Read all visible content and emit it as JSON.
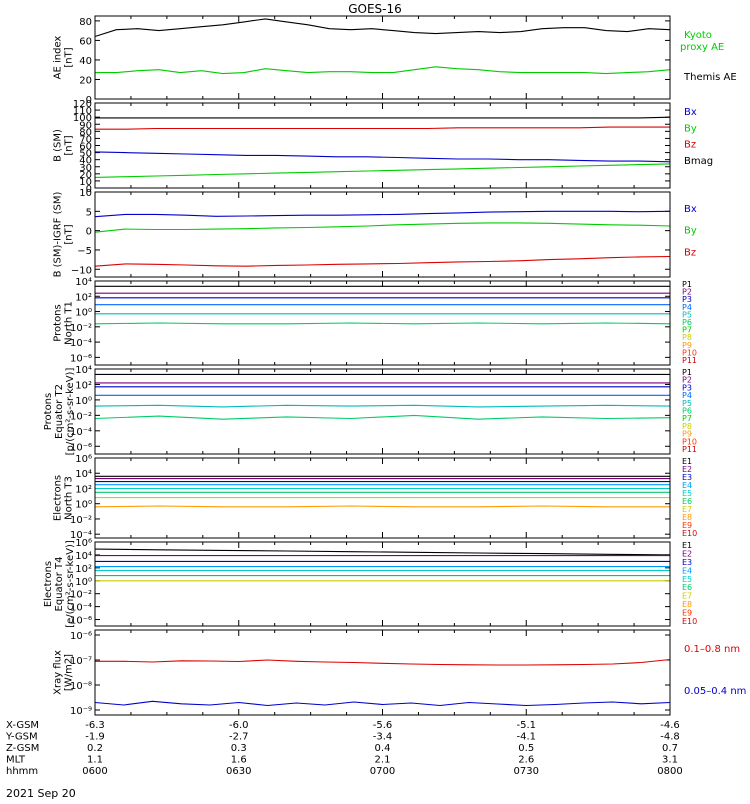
{
  "title": "GOES-16",
  "date_label": "2021 Sep 20",
  "colors": {
    "black": "#000000",
    "red": "#dd0000",
    "green": "#00cc00",
    "blue": "#0000cc",
    "p_palette": [
      "#000000",
      "#7a007a",
      "#0000cc",
      "#0066ff",
      "#00bbbb",
      "#00cc66",
      "#00cc00",
      "#cccc00",
      "#ff9900",
      "#ff3300",
      "#cc0000"
    ],
    "e_palette": [
      "#000000",
      "#7a007a",
      "#0000cc",
      "#0099ff",
      "#00cccc",
      "#00cc66",
      "#cccc00",
      "#ff9900",
      "#ff3300",
      "#dd0000"
    ]
  },
  "xaxis": {
    "rows": [
      {
        "label": "X-GSM",
        "values": [
          "-6.3",
          "-6.0",
          "-5.6",
          "-5.1",
          "-4.6"
        ]
      },
      {
        "label": "Y-GSM",
        "values": [
          "-1.9",
          "-2.7",
          "-3.4",
          "-4.1",
          "-4.8"
        ]
      },
      {
        "label": "Z-GSM",
        "values": [
          "0.2",
          "0.3",
          "0.4",
          "0.5",
          "0.7"
        ]
      },
      {
        "label": "MLT",
        "values": [
          "1.1",
          "1.6",
          "2.1",
          "2.6",
          "3.1"
        ]
      },
      {
        "label": "hhmm",
        "values": [
          "0600",
          "0630",
          "0700",
          "0730",
          "0800"
        ]
      }
    ]
  },
  "chart_data": [
    {
      "type": "line",
      "id": "ae",
      "ylabel": [
        "AE index",
        "[nT]"
      ],
      "ylim": [
        0,
        85
      ],
      "yticks": [
        {
          "v": 0,
          "t": "0"
        },
        {
          "v": 20,
          "t": "20"
        },
        {
          "v": 40,
          "t": "40"
        },
        {
          "v": 60,
          "t": "60"
        },
        {
          "v": 80,
          "t": "80"
        }
      ],
      "series": [
        {
          "name": "Kyoto proxy AE",
          "color": "green",
          "values": [
            27,
            27,
            29,
            30,
            27,
            29,
            26,
            27,
            31,
            29,
            27,
            28,
            28,
            27,
            27,
            30,
            33,
            31,
            30,
            28,
            27,
            27,
            27,
            27,
            26,
            27,
            28,
            30
          ]
        },
        {
          "name": "Themis AE",
          "color": "black",
          "values": [
            64,
            71,
            72,
            70,
            72,
            74,
            76,
            79,
            82,
            79,
            76,
            72,
            71,
            72,
            70,
            68,
            67,
            68,
            69,
            68,
            69,
            72,
            73,
            73,
            70,
            69,
            72,
            71
          ]
        }
      ]
    },
    {
      "type": "line",
      "id": "bsm",
      "ylabel": [
        "B (SM)",
        "[nT]"
      ],
      "ylim": [
        0,
        120
      ],
      "yticks": [
        {
          "v": 0,
          "t": "0"
        },
        {
          "v": 10,
          "t": "10"
        },
        {
          "v": 20,
          "t": "20"
        },
        {
          "v": 30,
          "t": "30"
        },
        {
          "v": 40,
          "t": "40"
        },
        {
          "v": 50,
          "t": "50"
        },
        {
          "v": 60,
          "t": "60"
        },
        {
          "v": 70,
          "t": "70"
        },
        {
          "v": 80,
          "t": "80"
        },
        {
          "v": 90,
          "t": "90"
        },
        {
          "v": 100,
          "t": "100"
        },
        {
          "v": 110,
          "t": "110"
        },
        {
          "v": 120,
          "t": "120"
        }
      ],
      "series": [
        {
          "name": "Bx",
          "color": "blue",
          "values": [
            51,
            50,
            49,
            48,
            47,
            46,
            46,
            45,
            44,
            44,
            43,
            42,
            41,
            41,
            40,
            40,
            39,
            38,
            38,
            37
          ]
        },
        {
          "name": "By",
          "color": "green",
          "values": [
            15,
            16,
            17,
            18,
            19,
            20,
            21,
            22,
            23,
            24,
            25,
            26,
            27,
            28,
            29,
            30,
            31,
            32,
            33,
            34
          ]
        },
        {
          "name": "Bz",
          "color": "red",
          "values": [
            83,
            83,
            84,
            84,
            84,
            84,
            84,
            84,
            84,
            84,
            84,
            84,
            85,
            85,
            85,
            85,
            85,
            86,
            86,
            86
          ]
        },
        {
          "name": "Bmag",
          "color": "black",
          "values": [
            99,
            99,
            99,
            99,
            99,
            99,
            99,
            99,
            99,
            99,
            99,
            99,
            99,
            99,
            99,
            99,
            99,
            99,
            99,
            100
          ]
        }
      ]
    },
    {
      "type": "line",
      "id": "bigrf",
      "ylabel": [
        "B (SM)-IGRF (SM)",
        "[nT]"
      ],
      "ylim": [
        -12,
        10
      ],
      "yticks": [
        {
          "v": -10,
          "t": "−10"
        },
        {
          "v": -5,
          "t": "−5"
        },
        {
          "v": 0,
          "t": "0"
        },
        {
          "v": 5,
          "t": "5"
        },
        {
          "v": 10,
          "t": "10"
        }
      ],
      "series": [
        {
          "name": "Bx",
          "color": "blue",
          "values": [
            3.6,
            4.2,
            4.2,
            4.0,
            3.7,
            3.8,
            3.9,
            4.0,
            4.0,
            4.1,
            4.2,
            4.4,
            4.6,
            4.8,
            4.9,
            5.0,
            5.0,
            5.0,
            4.9,
            5.0
          ]
        },
        {
          "name": "By",
          "color": "green",
          "values": [
            -0.4,
            0.4,
            0.3,
            0.3,
            0.4,
            0.5,
            0.7,
            0.8,
            1.0,
            1.2,
            1.5,
            1.7,
            1.9,
            2.0,
            2.0,
            1.9,
            1.7,
            1.5,
            1.4,
            1.2
          ]
        },
        {
          "name": "Bz",
          "color": "red",
          "values": [
            -9.2,
            -8.6,
            -8.7,
            -8.9,
            -9.1,
            -9.2,
            -9.0,
            -8.9,
            -8.7,
            -8.6,
            -8.5,
            -8.3,
            -8.1,
            -8.0,
            -7.8,
            -7.5,
            -7.3,
            -7.0,
            -6.8,
            -6.7
          ]
        }
      ]
    },
    {
      "type": "line",
      "id": "protons-t1",
      "scale": "log",
      "ylabel": [
        "Protons",
        "North T1"
      ],
      "ylim": [
        -7,
        4
      ],
      "yticks": [
        {
          "v": 4,
          "t": "10⁴"
        },
        {
          "v": 2,
          "t": "10²"
        },
        {
          "v": 0,
          "t": "10⁰"
        },
        {
          "v": -2,
          "t": "10⁻²"
        },
        {
          "v": -4,
          "t": "10⁻⁴"
        },
        {
          "v": -6,
          "t": "10⁻⁶"
        }
      ],
      "legend": [
        "P1",
        "P2",
        "P3",
        "P4",
        "P5",
        "P6",
        "P7",
        "P8",
        "P9",
        "P10",
        "P11"
      ],
      "series": [
        {
          "name": "P1",
          "color_index": 0,
          "values": [
            3.3,
            3.3,
            3.3,
            3.3,
            3.3,
            3.3,
            3.3,
            3.3,
            3.3,
            3.3
          ]
        },
        {
          "name": "P2",
          "color_index": 1,
          "values": [
            2.4,
            2.4,
            2.4,
            2.4,
            2.4,
            2.4,
            2.4,
            2.4,
            2.4,
            2.4
          ]
        },
        {
          "name": "P3",
          "color_index": 2,
          "values": [
            1.8,
            1.8,
            1.8,
            1.8,
            1.8,
            1.8,
            1.8,
            1.8,
            1.8,
            1.8
          ]
        },
        {
          "name": "P4",
          "color_index": 3,
          "values": [
            0.9,
            0.9,
            0.9,
            0.9,
            0.9,
            0.9,
            0.9,
            0.9,
            0.9,
            0.9
          ]
        },
        {
          "name": "P5",
          "color_index": 4,
          "values": [
            -0.3,
            -0.3,
            -0.3,
            -0.3,
            -0.3,
            -0.3,
            -0.3,
            -0.3,
            -0.3,
            -0.3
          ]
        },
        {
          "name": "P6",
          "color_index": 5,
          "values": [
            -1.6,
            -1.5,
            -1.6,
            -1.6,
            -1.5,
            -1.6,
            -1.5,
            -1.6,
            -1.5,
            -1.6
          ]
        }
      ]
    },
    {
      "type": "line",
      "id": "protons-t2",
      "scale": "log",
      "ylabel": [
        "Protons",
        "Equator T2",
        "[p/(cm²-s-sr-keV)]"
      ],
      "ylim": [
        -7,
        4
      ],
      "yticks": [
        {
          "v": 4,
          "t": "10⁴"
        },
        {
          "v": 2,
          "t": "10²"
        },
        {
          "v": 0,
          "t": "10⁰"
        },
        {
          "v": -2,
          "t": "10⁻²"
        },
        {
          "v": -4,
          "t": "10⁻⁴"
        },
        {
          "v": -6,
          "t": "10⁻⁶"
        }
      ],
      "legend": [
        "P1",
        "P2",
        "P3",
        "P4",
        "P5",
        "P6",
        "P7",
        "P8",
        "P9",
        "P10",
        "P11"
      ],
      "series": [
        {
          "name": "P1",
          "color_index": 0,
          "values": [
            3.3,
            3.3,
            3.3,
            3.3,
            3.3,
            3.3,
            3.3,
            3.3,
            3.3,
            3.3
          ]
        },
        {
          "name": "P2",
          "color_index": 1,
          "values": [
            2.2,
            2.2,
            2.2,
            2.2,
            2.2,
            2.2,
            2.2,
            2.2,
            2.2,
            2.2
          ]
        },
        {
          "name": "P3",
          "color_index": 2,
          "values": [
            1.7,
            1.7,
            1.7,
            1.7,
            1.7,
            1.7,
            1.7,
            1.7,
            1.7,
            1.7
          ]
        },
        {
          "name": "P4",
          "color_index": 3,
          "values": [
            0.6,
            0.6,
            0.6,
            0.6,
            0.6,
            0.6,
            0.6,
            0.6,
            0.6,
            0.6
          ]
        },
        {
          "name": "P5",
          "color_index": 4,
          "values": [
            -0.8,
            -0.7,
            -0.9,
            -0.7,
            -0.8,
            -0.7,
            -0.9,
            -0.8,
            -0.7,
            -0.8
          ]
        },
        {
          "name": "P6",
          "color_index": 5,
          "values": [
            -2.4,
            -2.1,
            -2.5,
            -2.2,
            -2.4,
            -2.0,
            -2.5,
            -2.2,
            -2.4,
            -2.3
          ]
        }
      ]
    },
    {
      "type": "line",
      "id": "electrons-t3",
      "scale": "log",
      "ylabel": [
        "Electrons",
        "North T3"
      ],
      "ylim": [
        -4.5,
        6
      ],
      "yticks": [
        {
          "v": 6,
          "t": "10⁶"
        },
        {
          "v": 4,
          "t": "10⁴"
        },
        {
          "v": 2,
          "t": "10²"
        },
        {
          "v": 0,
          "t": "10⁰"
        },
        {
          "v": -2,
          "t": "10⁻²"
        },
        {
          "v": -4,
          "t": "10⁻⁴"
        }
      ],
      "legend": [
        "E1",
        "E2",
        "E3",
        "E4",
        "E5",
        "E6",
        "E7",
        "E8",
        "E9",
        "E10"
      ],
      "series": [
        {
          "name": "E1",
          "color_index": 0,
          "values": [
            3.6,
            3.6,
            3.6,
            3.6,
            3.6,
            3.6,
            3.6,
            3.6,
            3.6,
            3.6
          ]
        },
        {
          "name": "E2",
          "color_index": 1,
          "values": [
            3.3,
            3.3,
            3.3,
            3.3,
            3.3,
            3.3,
            3.3,
            3.3,
            3.3,
            3.3
          ]
        },
        {
          "name": "E3",
          "color_index": 2,
          "values": [
            2.9,
            2.9,
            2.9,
            2.9,
            2.9,
            2.9,
            2.9,
            2.9,
            2.9,
            2.9
          ]
        },
        {
          "name": "E4",
          "color_index": 3,
          "values": [
            2.5,
            2.5,
            2.5,
            2.5,
            2.5,
            2.5,
            2.5,
            2.5,
            2.5,
            2.5
          ]
        },
        {
          "name": "E5",
          "color_index": 4,
          "values": [
            2.0,
            2.0,
            2.0,
            2.0,
            2.0,
            2.0,
            2.0,
            2.0,
            2.0,
            2.0
          ]
        },
        {
          "name": "E6",
          "color_index": 5,
          "values": [
            1.5,
            1.5,
            1.5,
            1.5,
            1.5,
            1.5,
            1.5,
            1.5,
            1.5,
            1.5
          ]
        },
        {
          "name": "E7",
          "color_index": 6,
          "values": [
            0.8,
            0.8,
            0.8,
            0.8,
            0.8,
            0.8,
            0.8,
            0.8,
            0.8,
            0.8
          ]
        },
        {
          "name": "E8",
          "color_index": 7,
          "values": [
            -0.4,
            -0.3,
            -0.4,
            -0.4,
            -0.3,
            -0.4,
            -0.4,
            -0.3,
            -0.4,
            -0.4
          ]
        }
      ]
    },
    {
      "type": "line",
      "id": "electrons-t4",
      "scale": "log",
      "ylabel": [
        "Electrons",
        "Equator T4",
        "[e/(cm²-s-sr-keV)]"
      ],
      "ylim": [
        -7,
        6
      ],
      "yticks": [
        {
          "v": 6,
          "t": "10⁶"
        },
        {
          "v": 4,
          "t": "10⁴"
        },
        {
          "v": 2,
          "t": "10²"
        },
        {
          "v": 0,
          "t": "10⁰"
        },
        {
          "v": -2,
          "t": "10⁻²"
        },
        {
          "v": -4,
          "t": "10⁻⁴"
        },
        {
          "v": -6,
          "t": "10⁻⁶"
        }
      ],
      "legend": [
        "E1",
        "E2",
        "E3",
        "E4",
        "E5",
        "E6",
        "E7",
        "E8",
        "E9",
        "E10"
      ],
      "series": [
        {
          "name": "E1",
          "color_index": 0,
          "values": [
            4.9,
            4.8,
            4.7,
            4.6,
            4.5,
            4.4,
            4.3,
            4.2,
            4.1,
            4.0
          ]
        },
        {
          "name": "E2",
          "color_index": 1,
          "values": [
            3.9,
            3.9,
            3.9,
            3.9,
            3.9,
            3.9,
            3.9,
            3.9,
            3.9,
            3.9
          ]
        },
        {
          "name": "E3",
          "color_index": 2,
          "values": [
            3.0,
            3.0,
            3.0,
            3.0,
            3.0,
            3.0,
            3.0,
            3.0,
            3.0,
            3.0
          ]
        },
        {
          "name": "E4",
          "color_index": 3,
          "values": [
            2.2,
            2.2,
            2.2,
            2.2,
            2.2,
            2.2,
            2.2,
            2.2,
            2.2,
            2.2
          ]
        },
        {
          "name": "E5",
          "color_index": 4,
          "values": [
            1.6,
            1.6,
            1.6,
            1.6,
            1.6,
            1.6,
            1.6,
            1.6,
            1.6,
            1.6
          ]
        },
        {
          "name": "E6",
          "color_index": 5,
          "values": [
            0.8,
            0.8,
            0.8,
            0.8,
            0.8,
            0.8,
            0.8,
            0.8,
            0.8,
            0.8
          ]
        },
        {
          "name": "E7",
          "color_index": 6,
          "values": [
            0.0,
            0.0,
            0.0,
            0.0,
            0.0,
            0.0,
            0.0,
            0.0,
            0.0,
            0.0
          ]
        }
      ]
    },
    {
      "type": "line",
      "id": "xray",
      "scale": "log",
      "ylabel": [
        "Xray flux",
        "[W/m2]"
      ],
      "ylim": [
        -9.2,
        -5.8
      ],
      "yticks": [
        {
          "v": -6,
          "t": "10⁻⁶"
        },
        {
          "v": -7,
          "t": "10⁻⁷"
        },
        {
          "v": -8,
          "t": "10⁻⁸"
        },
        {
          "v": -9,
          "t": "10⁻⁹"
        }
      ],
      "series": [
        {
          "name": "0.1–0.8 nm",
          "color": "red",
          "values": [
            -7.05,
            -7.05,
            -7.08,
            -7.03,
            -7.04,
            -7.06,
            -7.0,
            -7.05,
            -7.08,
            -7.1,
            -7.13,
            -7.16,
            -7.18,
            -7.19,
            -7.2,
            -7.2,
            -7.19,
            -7.18,
            -7.16,
            -7.1,
            -6.98
          ]
        },
        {
          "name": "0.05–0.4 nm",
          "color": "blue",
          "values": [
            -8.7,
            -8.8,
            -8.65,
            -8.75,
            -8.8,
            -8.7,
            -8.82,
            -8.72,
            -8.8,
            -8.68,
            -8.78,
            -8.72,
            -8.82,
            -8.7,
            -8.76,
            -8.82,
            -8.78,
            -8.72,
            -8.68,
            -8.75,
            -8.7
          ]
        }
      ]
    }
  ]
}
